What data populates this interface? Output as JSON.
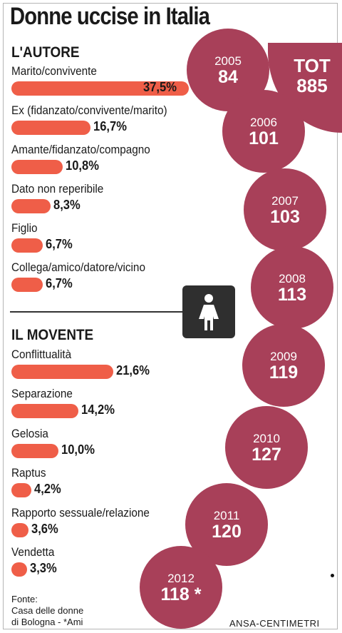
{
  "title": "Donne uccise in Italia",
  "total": {
    "label": "TOT",
    "value": "885"
  },
  "source": "Fonte:\nCasa delle donne\ndi Bologna - *Ami",
  "credit": "ANSA-CENTIMETRI",
  "colors": {
    "bar": "#ef5e48",
    "circle": "#a84059",
    "icon_box": "#2f2f2f"
  },
  "icon": "woman-icon",
  "chart_data": [
    {
      "type": "bar",
      "title": "L'AUTORE",
      "categories": [
        "Marito/convivente",
        "Ex (fidanzato/convivente/marito)",
        "Amante/fidanzato/compagno",
        "Dato non reperibile",
        "Figlio",
        "Collega/amico/datore/vicino"
      ],
      "values": [
        37.5,
        16.7,
        10.8,
        8.3,
        6.7,
        6.7
      ],
      "labels": [
        "37,5%",
        "16,7%",
        "10,8%",
        "8,3%",
        "6,7%",
        "6,7%"
      ]
    },
    {
      "type": "bar",
      "title": "IL MOVENTE",
      "categories": [
        "Conflittualità",
        "Separazione",
        "Gelosia",
        "Raptus",
        "Rapporto sessuale/relazione",
        "Vendetta"
      ],
      "values": [
        21.6,
        14.2,
        10.0,
        4.2,
        3.6,
        3.3
      ],
      "labels": [
        "21,6%",
        "14,2%",
        "10,0%",
        "4,2%",
        "3,6%",
        "3,3%"
      ]
    },
    {
      "type": "bubble",
      "categories": [
        "2005",
        "2006",
        "2007",
        "2008",
        "2009",
        "2010",
        "2011",
        "2012"
      ],
      "values": [
        84,
        101,
        103,
        113,
        119,
        127,
        120,
        118
      ],
      "labels": [
        "84",
        "101",
        "103",
        "113",
        "119",
        "127",
        "120",
        "118 *"
      ]
    }
  ]
}
